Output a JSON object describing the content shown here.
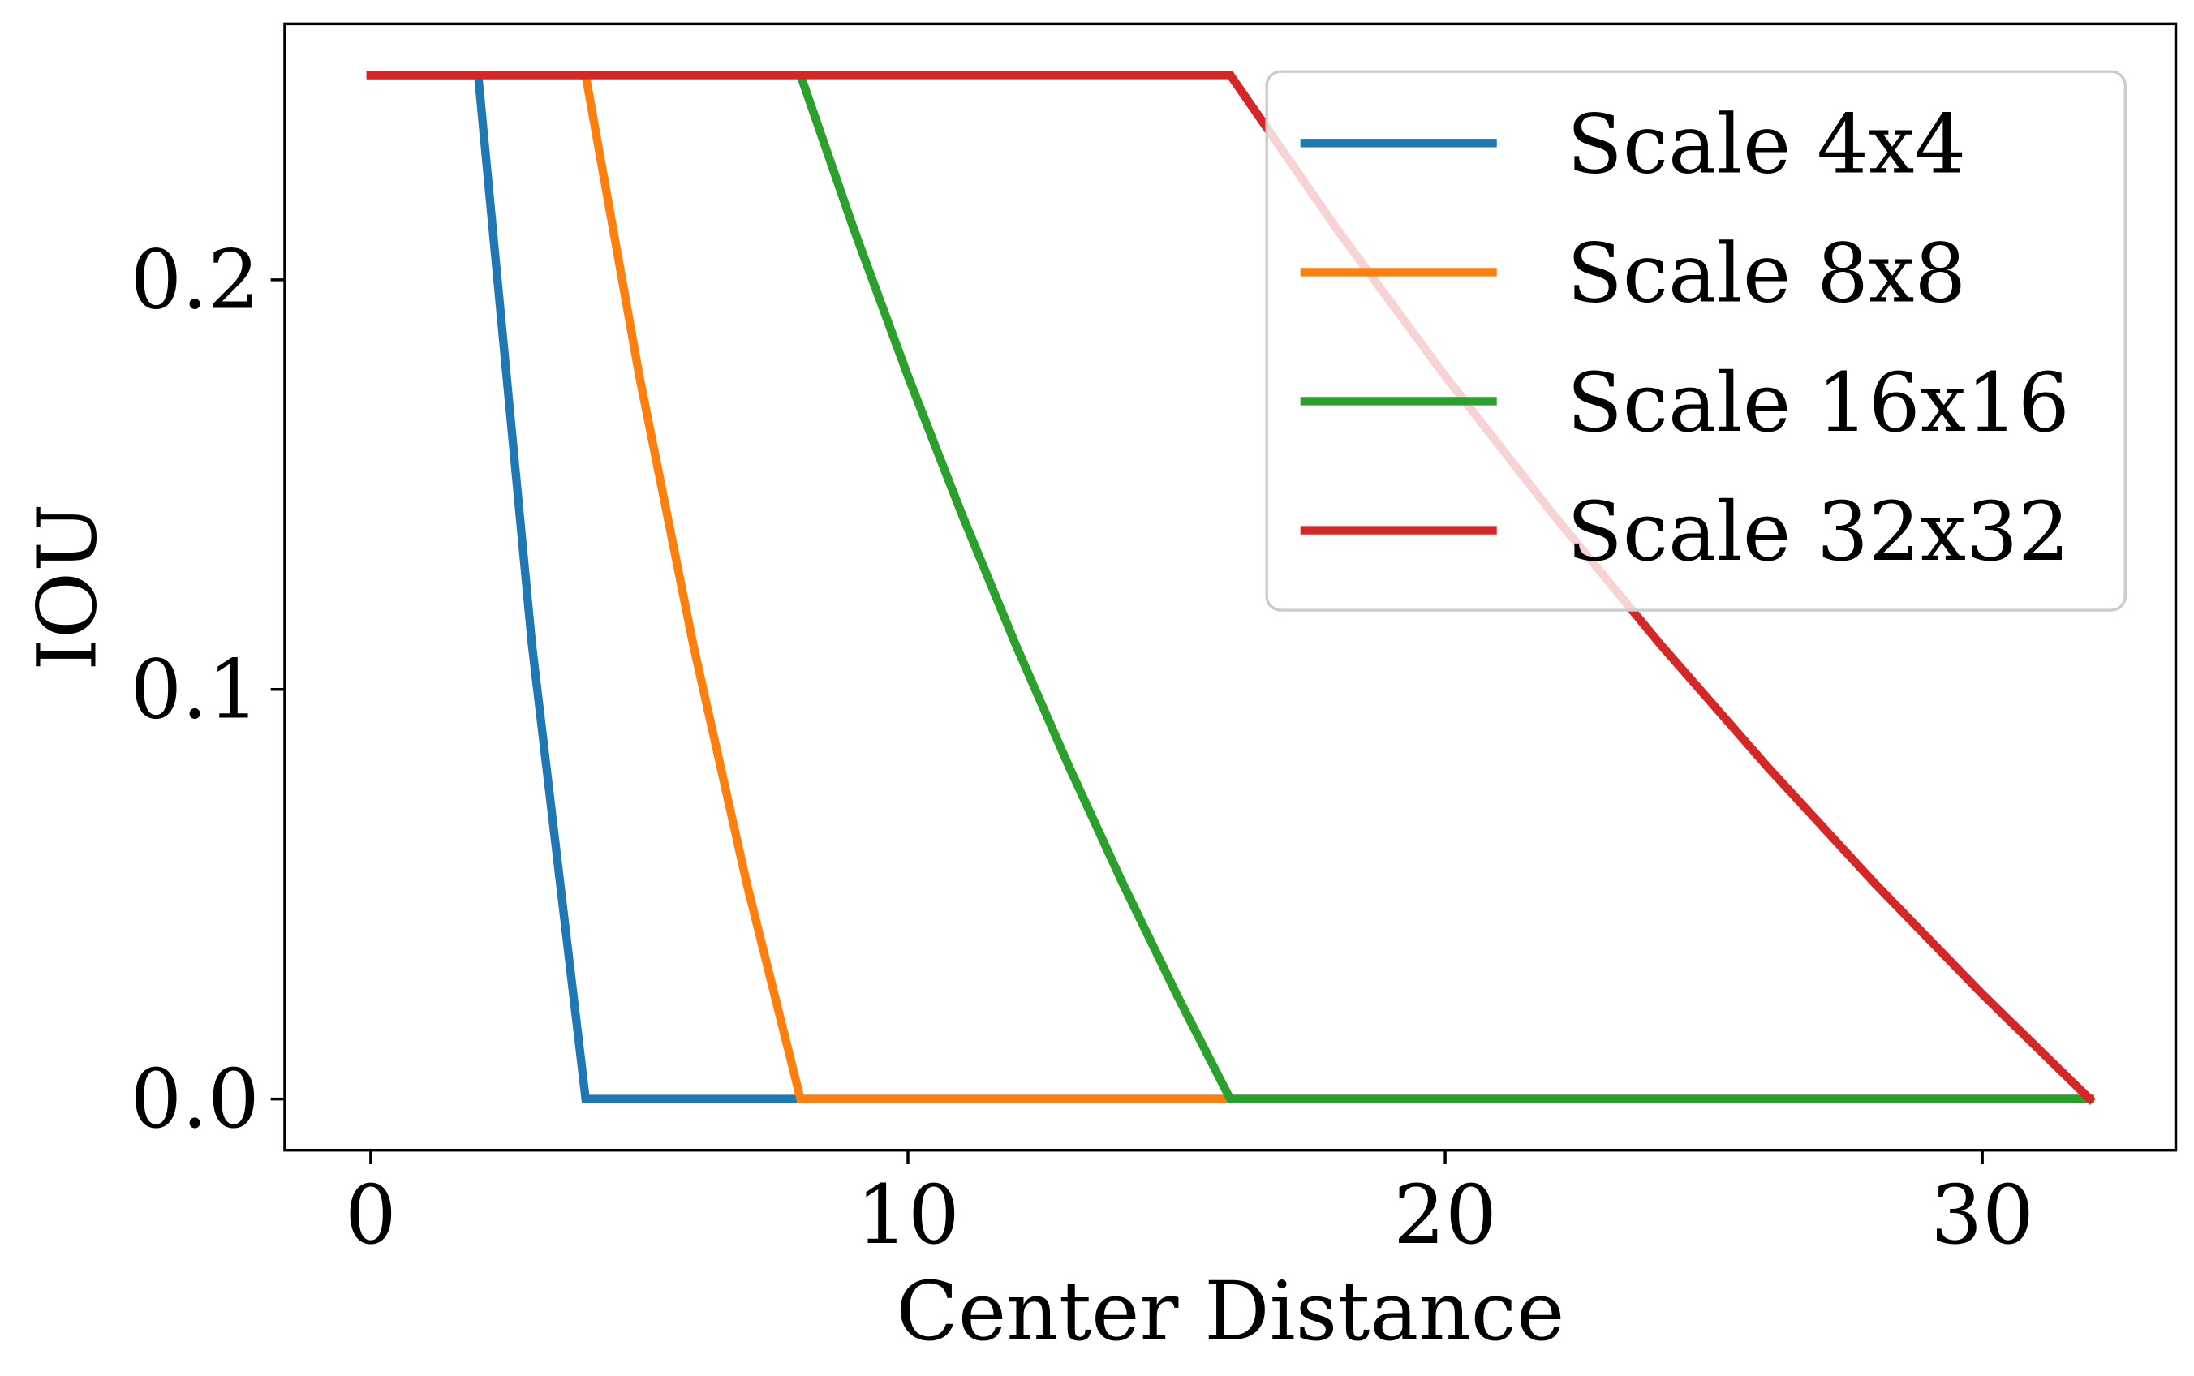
{
  "chart_data": {
    "type": "line",
    "xlabel": "Center Distance",
    "ylabel": "IOU",
    "xlim": [
      -1.6,
      33.6
    ],
    "ylim": [
      -0.0125,
      0.2625
    ],
    "xticks": [
      0,
      10,
      20,
      30
    ],
    "xtick_labels": [
      "0",
      "10",
      "20",
      "30"
    ],
    "yticks": [
      0.0,
      0.1,
      0.2
    ],
    "ytick_labels": [
      "0.0",
      "0.1",
      "0.2"
    ],
    "grid": false,
    "legend_position": "top-right",
    "series": [
      {
        "name": "Scale 4x4",
        "color": "#1f77b4",
        "x": [
          0,
          2,
          3,
          4,
          32
        ],
        "y": [
          0.25,
          0.25,
          0.1111,
          0.0,
          0.0
        ]
      },
      {
        "name": "Scale 8x8",
        "color": "#ff7f0e",
        "x": [
          0,
          4,
          5,
          6,
          7,
          8,
          32
        ],
        "y": [
          0.25,
          0.25,
          0.1765,
          0.1111,
          0.0526,
          0.0,
          0.0
        ]
      },
      {
        "name": "Scale 16x16",
        "color": "#2ca02c",
        "x": [
          0,
          8,
          9,
          10,
          11,
          12,
          13,
          14,
          15,
          16,
          32
        ],
        "y": [
          0.25,
          0.25,
          0.2121,
          0.1765,
          0.1429,
          0.1111,
          0.0811,
          0.0526,
          0.0256,
          0.0,
          0.0
        ]
      },
      {
        "name": "Scale 32x32",
        "color": "#d62728",
        "x": [
          0,
          16,
          18,
          20,
          22,
          24,
          26,
          28,
          30,
          32
        ],
        "y": [
          0.25,
          0.25,
          0.2121,
          0.1765,
          0.1429,
          0.1111,
          0.0811,
          0.0526,
          0.0256,
          0.0
        ]
      }
    ]
  }
}
